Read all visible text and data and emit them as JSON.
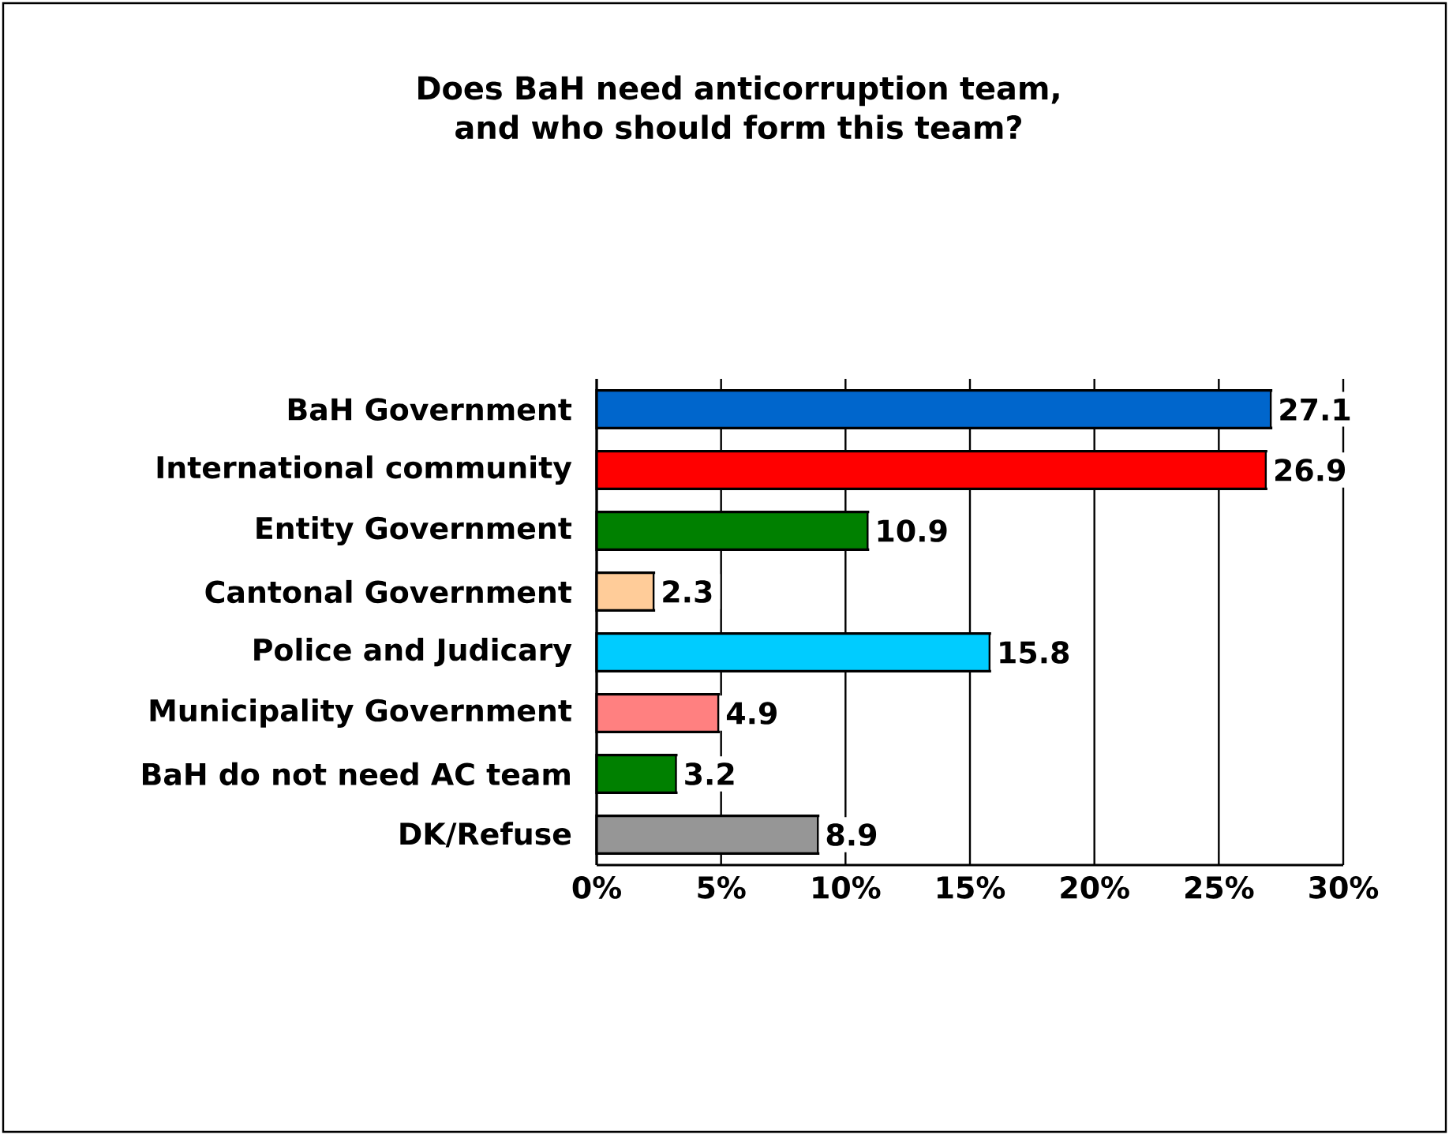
{
  "chart_data": {
    "type": "bar",
    "orientation": "horizontal",
    "title": "Does BaH need anticorruption team, and who should form this team?",
    "categories": [
      "BaH Government",
      "International community",
      "Entity Government",
      "Cantonal Government",
      "Police and Judicary",
      "Municipality Government",
      "BaH do not need AC team",
      "DK/Refuse"
    ],
    "values": [
      27.1,
      26.9,
      10.9,
      2.3,
      15.8,
      4.9,
      3.2,
      8.9
    ],
    "colors": [
      "#0066cc",
      "#ff0000",
      "#008000",
      "#ffcc99",
      "#00ccff",
      "#ff8080",
      "#008000",
      "#969696"
    ],
    "xlim": [
      0,
      30
    ],
    "xticks": [
      {
        "value": 0,
        "label": "0%"
      },
      {
        "value": 5,
        "label": "5%"
      },
      {
        "value": 10,
        "label": "10%"
      },
      {
        "value": 15,
        "label": "15%"
      },
      {
        "value": 20,
        "label": "20%"
      },
      {
        "value": 25,
        "label": "25%"
      },
      {
        "value": 30,
        "label": "30%"
      }
    ],
    "grid": "x",
    "data_labels": true
  }
}
